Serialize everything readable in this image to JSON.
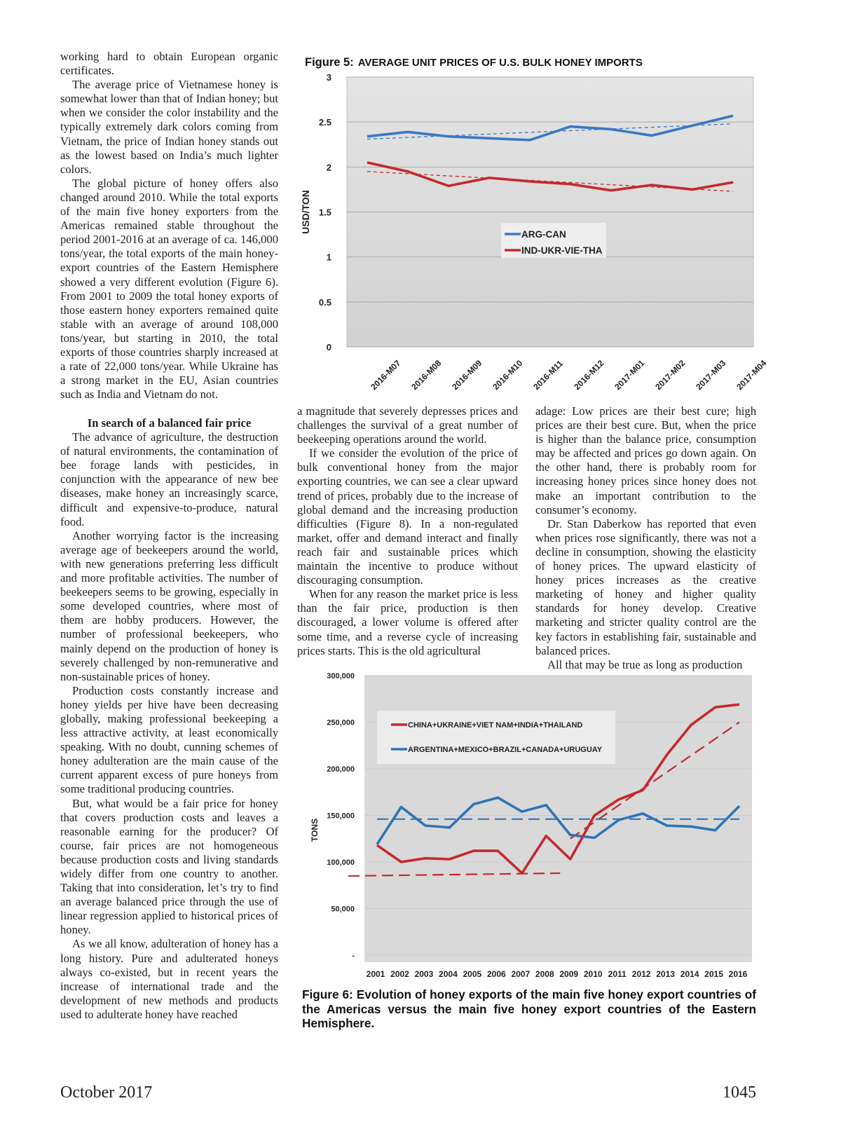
{
  "columns": {
    "left_top": [
      {
        "text": "working hard to obtain European organic certificates.",
        "indent": false
      },
      {
        "text": "The average price of Vietnamese honey is somewhat lower than that of Indian honey; but when we consider the color instability and the typically extremely dark colors coming from Vietnam, the price of Indian honey stands out as the lowest based on India’s much lighter colors.",
        "indent": true
      },
      {
        "text": "The global picture of honey offers also changed around 2010. While the total exports of the main five honey exporters from the Americas remained stable throughout the period 2001-2016 at an average of ca. 146,000 tons/year, the total exports of the main honey-export countries of the Eastern Hemisphere showed a very different evolution (Figure 6). From 2001 to 2009 the total honey exports of those eastern honey exporters remained quite stable with an average of around 108,000 tons/year, but starting in 2010, the total exports of those countries sharply increased at a rate of 22,000 tons/year. While Ukraine has a strong market in the EU, Asian countries such as India and Vietnam do not.",
        "indent": true
      }
    ],
    "left_heading": "In search of a balanced fair price",
    "left_bottom": [
      "The advance of agriculture, the destruction of natural environments, the contamination of bee forage lands with pesticides, in conjunction with the appearance of new bee diseases, make honey an increasingly scarce, difficult and expensive-to-produce, natural food.",
      "Another worrying factor is the increasing average age of beekeepers around the world, with new generations preferring less difficult and more profitable activities. The number of beekeepers seems to be growing, especially in some developed countries, where most of them are hobby producers. However, the number of professional beekeepers, who mainly depend on the production of honey is severely challenged by non-remunerative and non-sustainable prices of honey.",
      "Production costs constantly increase and honey yields per hive have been decreasing globally, making professional beekeeping a less attractive activity, at least economically speaking. With no doubt, cunning schemes of honey adulteration are the main cause of the current apparent excess of pure honeys from some traditional producing countries.",
      "But, what would be a fair price for honey that covers production costs and leaves a reasonable earning for the producer? Of course, fair prices are not homogeneous because production costs and living standards widely differ from one country to another. Taking that into consideration, let’s try to find an average balanced price through the use of linear regression applied to historical prices of honey.",
      "As we all know, adulteration of honey has a long history. Pure and adulterated honeys always co-existed, but in recent years the increase of international trade and the development of new methods and products used to adulterate honey have reached"
    ],
    "middle": [
      {
        "text": "a magnitude that severely depresses prices and challenges the survival of a great number of beekeeping operations around the world.",
        "indent": false
      },
      {
        "text": "If we consider the evolution of the price of bulk conventional honey from the major exporting countries, we can see a clear upward trend of prices, probably due to the increase of global demand and the increasing production difficulties (Figure 8). In a non-regulated market, offer and demand interact and finally reach fair and sustainable prices which maintain the incentive to produce without discouraging consumption.",
        "indent": true
      },
      {
        "text": "When for any reason the market price is less than the fair price, production is then discouraged, a lower volume is offered after some time, and a reverse cycle of increasing prices starts. This is the old agricultural",
        "indent": true
      }
    ],
    "right": [
      {
        "text": "adage: Low prices are their best cure; high prices are their best cure. But, when the price is higher than the balance price, consumption may be affected and prices go down again. On the other hand, there is probably room for increasing honey prices since honey does not make an important contribution to the consumer’s economy.",
        "indent": false
      },
      {
        "text": "Dr. Stan Daberkow has reported that even when prices rose significantly, there was not a decline in consumption, showing the elasticity of honey prices. The upward elasticity of honey prices increases as the creative marketing of honey and higher quality standards for honey develop. Creative marketing and stricter quality control are the key factors in establishing fair, sustainable and balanced prices.",
        "indent": true
      },
      {
        "text": "All that may be true as long as production",
        "indent": true
      }
    ]
  },
  "figure5_label": "Figure 5:",
  "figure6_caption": "Figure 6: Evolution of honey exports of the main five honey export countries of the Americas versus the main five honey export countries of the Eastern Hemisphere.",
  "footer": {
    "left": "October 2017",
    "right": "1045"
  },
  "colors": {
    "blue": "#3a78c2",
    "red": "#c6282d",
    "plot_bg": "#dcdcdc",
    "fig6_blue": "#2f74b5"
  },
  "chart_data": [
    {
      "type": "line",
      "title": "AVERAGE UNIT PRICES OF U.S. BULK HONEY IMPORTS",
      "ylabel": "USD/TON",
      "xlabel": "",
      "categories": [
        "2016-M07",
        "2016-M08",
        "2016-M09",
        "2016-M10",
        "2016-M11",
        "2016-M12",
        "2017-M01",
        "2017-M02",
        "2017-M03",
        "2017-M04"
      ],
      "ylim": [
        0,
        3
      ],
      "yticks": [
        "0",
        "0.5",
        "1",
        "1.5",
        "2",
        "2.5",
        "3"
      ],
      "series": [
        {
          "name": "ARG-CAN",
          "values": [
            2.34,
            2.39,
            2.34,
            2.32,
            2.3,
            2.45,
            2.42,
            2.35,
            2.46,
            2.57
          ],
          "trend": [
            2.31,
            2.48
          ]
        },
        {
          "name": "IND-UKR-VIE-THA",
          "values": [
            2.05,
            1.95,
            1.79,
            1.88,
            1.84,
            1.81,
            1.74,
            1.8,
            1.75,
            1.83
          ],
          "trend": [
            1.95,
            1.73
          ]
        }
      ],
      "grid": true,
      "legend": "center-right"
    },
    {
      "type": "line",
      "title": "",
      "ylabel": "TONS",
      "xlabel": "",
      "categories": [
        "2001",
        "2002",
        "2003",
        "2004",
        "2005",
        "2006",
        "2007",
        "2008",
        "2009",
        "2010",
        "2011",
        "2012",
        "2013",
        "2014",
        "2015",
        "2016"
      ],
      "ylim": [
        0,
        300000
      ],
      "yticks": [
        "-",
        "50,000",
        "100,000",
        "150,000",
        "200,000",
        "250,000",
        "300,000"
      ],
      "series": [
        {
          "name": "CHINA+UKRAINE+VIET NAM+INDIA+THAILAND",
          "values": [
            118000,
            100000,
            104000,
            103000,
            112000,
            112000,
            88000,
            128000,
            103000,
            150000,
            167000,
            177000,
            215000,
            247000,
            266000,
            269000
          ],
          "trend_early": [
            85000,
            88000
          ],
          "trend_late": [
            125000,
            250000
          ]
        },
        {
          "name": "ARGENTINA+MEXICO+BRAZIL+CANADA+URUGUAY",
          "values": [
            119000,
            159000,
            139000,
            137000,
            162000,
            169000,
            154000,
            161000,
            129000,
            126000,
            145000,
            152000,
            139000,
            138000,
            134000,
            160000
          ],
          "trend": [
            146000,
            146000
          ]
        }
      ],
      "grid": true,
      "legend": "top-left"
    }
  ]
}
